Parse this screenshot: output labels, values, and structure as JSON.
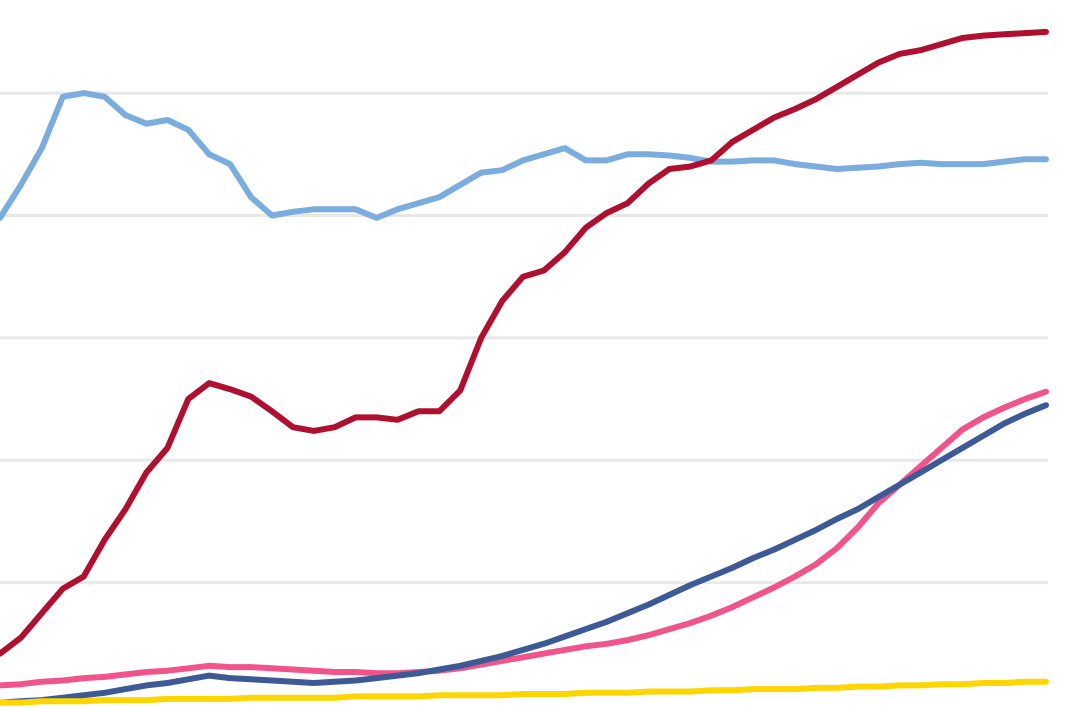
{
  "chart_data": {
    "type": "line",
    "title": "",
    "xlabel": "",
    "ylabel": "",
    "x": [
      0,
      2,
      4,
      6,
      8,
      10,
      12,
      14,
      16,
      18,
      20,
      22,
      24,
      26,
      28,
      30,
      32,
      34,
      36,
      38,
      40,
      42,
      44,
      46,
      48,
      50,
      52,
      54,
      56,
      58,
      60,
      62,
      64,
      66,
      68,
      70,
      72,
      74,
      76,
      78,
      80,
      82,
      84,
      86,
      88,
      90,
      92,
      94,
      96,
      98,
      100
    ],
    "xlim": [
      0,
      100
    ],
    "ylim": [
      0,
      5.45
    ],
    "y_gridlines": [
      1,
      2,
      3,
      4,
      5
    ],
    "grid": true,
    "legend": "none",
    "series": [
      {
        "color": "#7aaddd",
        "values": [
          3.98,
          4.25,
          4.55,
          4.97,
          5.0,
          4.97,
          4.82,
          4.75,
          4.78,
          4.7,
          4.5,
          4.42,
          4.15,
          4.0,
          4.03,
          4.05,
          4.05,
          4.05,
          3.98,
          4.05,
          4.1,
          4.15,
          4.25,
          4.35,
          4.37,
          4.45,
          4.5,
          4.55,
          4.45,
          4.45,
          4.5,
          4.5,
          4.49,
          4.47,
          4.44,
          4.44,
          4.45,
          4.45,
          4.42,
          4.4,
          4.38,
          4.39,
          4.4,
          4.42,
          4.43,
          4.42,
          4.42,
          4.42,
          4.44,
          4.46,
          4.46
        ]
      },
      {
        "color": "#b01030",
        "values": [
          0.42,
          0.55,
          0.75,
          0.95,
          1.05,
          1.35,
          1.6,
          1.9,
          2.1,
          2.5,
          2.63,
          2.58,
          2.52,
          2.4,
          2.27,
          2.24,
          2.27,
          2.35,
          2.35,
          2.33,
          2.4,
          2.4,
          2.57,
          3.0,
          3.3,
          3.5,
          3.55,
          3.7,
          3.9,
          4.02,
          4.1,
          4.26,
          4.38,
          4.4,
          4.45,
          4.6,
          4.7,
          4.8,
          4.87,
          4.95,
          5.05,
          5.15,
          5.25,
          5.32,
          5.35,
          5.4,
          5.45,
          5.47,
          5.48,
          5.49,
          5.5
        ]
      },
      {
        "color": "#f0548a",
        "values": [
          0.16,
          0.17,
          0.19,
          0.2,
          0.22,
          0.23,
          0.25,
          0.27,
          0.28,
          0.3,
          0.32,
          0.31,
          0.31,
          0.3,
          0.29,
          0.28,
          0.27,
          0.27,
          0.26,
          0.26,
          0.27,
          0.28,
          0.3,
          0.33,
          0.36,
          0.39,
          0.42,
          0.45,
          0.48,
          0.5,
          0.53,
          0.57,
          0.62,
          0.67,
          0.73,
          0.8,
          0.88,
          0.96,
          1.05,
          1.15,
          1.28,
          1.45,
          1.65,
          1.8,
          1.95,
          2.1,
          2.25,
          2.35,
          2.43,
          2.5,
          2.56
        ]
      },
      {
        "color": "#3d5a96",
        "values": [
          0.02,
          0.03,
          0.04,
          0.06,
          0.08,
          0.1,
          0.13,
          0.16,
          0.18,
          0.21,
          0.24,
          0.22,
          0.21,
          0.2,
          0.19,
          0.18,
          0.19,
          0.2,
          0.22,
          0.24,
          0.26,
          0.29,
          0.32,
          0.36,
          0.4,
          0.45,
          0.5,
          0.56,
          0.62,
          0.68,
          0.75,
          0.82,
          0.9,
          0.98,
          1.05,
          1.12,
          1.2,
          1.27,
          1.35,
          1.43,
          1.52,
          1.6,
          1.7,
          1.8,
          1.9,
          2.0,
          2.1,
          2.2,
          2.3,
          2.38,
          2.45
        ]
      },
      {
        "color": "#ffd500",
        "values": [
          0.02,
          0.02,
          0.03,
          0.03,
          0.03,
          0.04,
          0.04,
          0.04,
          0.05,
          0.05,
          0.05,
          0.05,
          0.06,
          0.06,
          0.06,
          0.06,
          0.06,
          0.07,
          0.07,
          0.07,
          0.07,
          0.08,
          0.08,
          0.08,
          0.08,
          0.09,
          0.09,
          0.09,
          0.1,
          0.1,
          0.1,
          0.11,
          0.11,
          0.11,
          0.12,
          0.12,
          0.13,
          0.13,
          0.13,
          0.14,
          0.14,
          0.15,
          0.15,
          0.16,
          0.16,
          0.17,
          0.17,
          0.18,
          0.18,
          0.19,
          0.19
        ]
      }
    ]
  }
}
